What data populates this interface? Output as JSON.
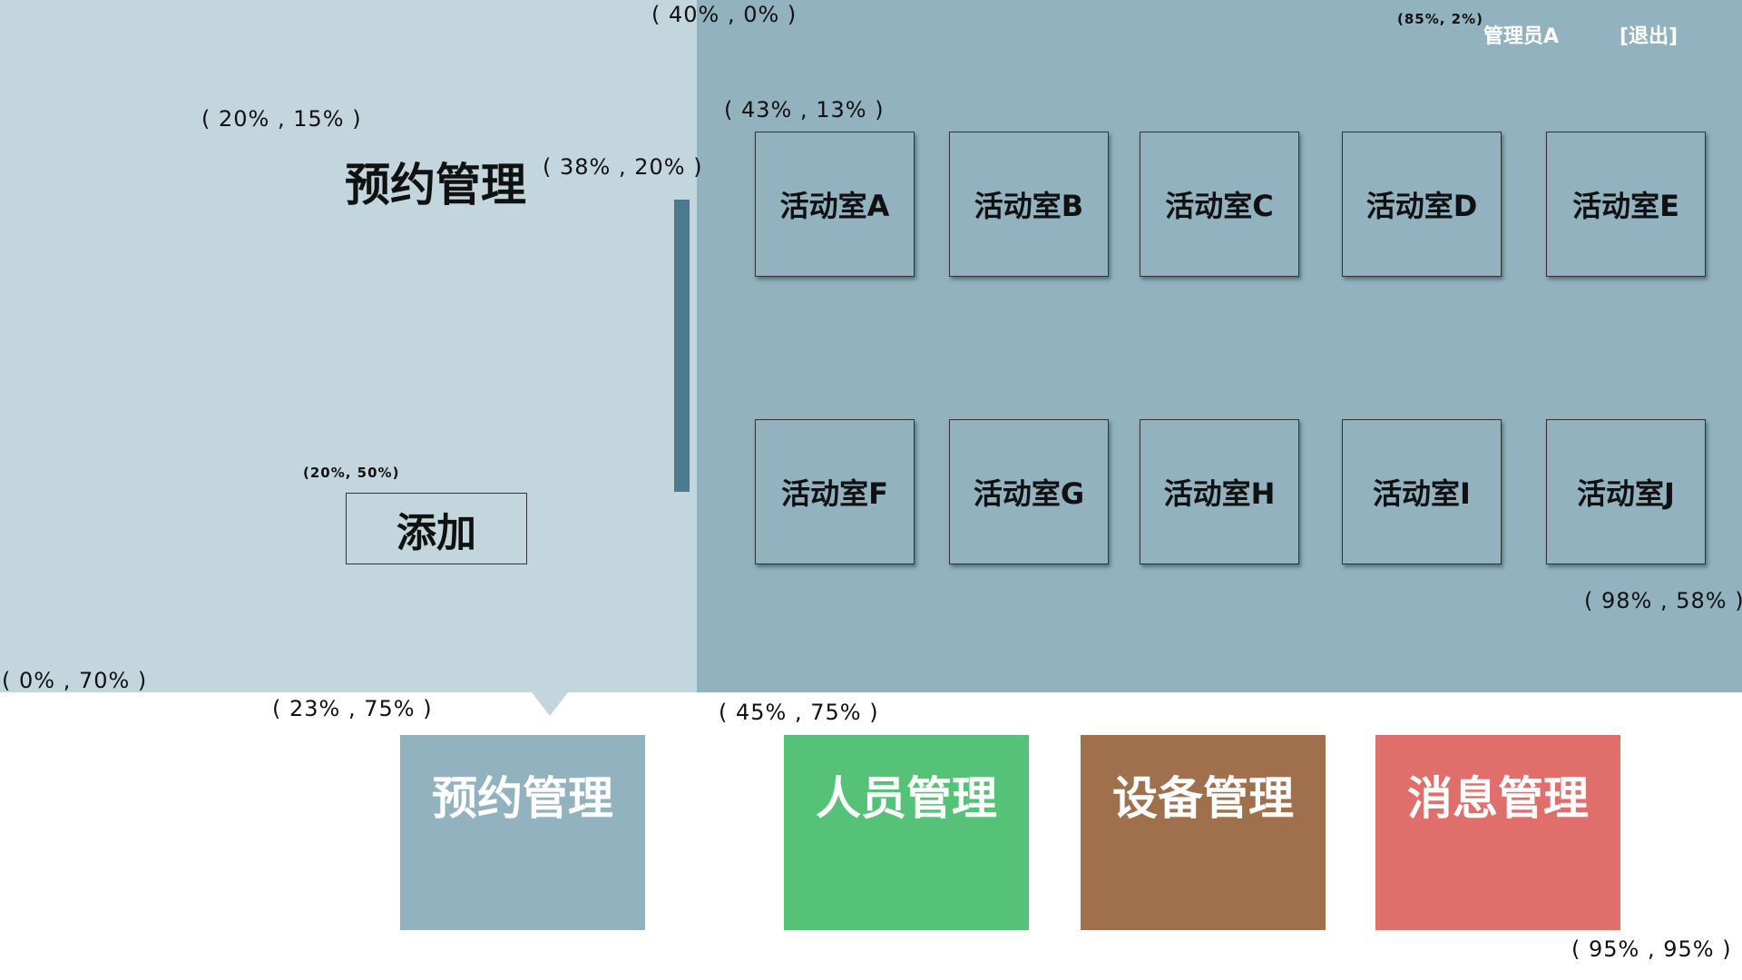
{
  "header": {
    "user_name": "管理员A",
    "logout_label": "[退出]"
  },
  "page_title": "预约管理",
  "add_label": "添加",
  "rooms": [
    {
      "label": "活动室A"
    },
    {
      "label": "活动室B"
    },
    {
      "label": "活动室C"
    },
    {
      "label": "活动室D"
    },
    {
      "label": "活动室E"
    },
    {
      "label": "活动室F"
    },
    {
      "label": "活动室G"
    },
    {
      "label": "活动室H"
    },
    {
      "label": "活动室I"
    },
    {
      "label": "活动室J"
    }
  ],
  "nav": [
    {
      "label": "预约管理",
      "color": "#92b2bf",
      "active": true
    },
    {
      "label": "人员管理",
      "color": "#56c277",
      "active": false
    },
    {
      "label": "设备管理",
      "color": "#a0704c",
      "active": false
    },
    {
      "label": "消息管理",
      "color": "#e06f6c",
      "active": false
    }
  ],
  "annotations": [
    "( 40% , 0% )",
    "(85%, 2%)",
    "( 20% , 15% )",
    "( 38% , 20% )",
    "( 43% , 13% )",
    "(20%, 50%)",
    "( 98% , 58% )",
    "( 0% , 70% )",
    "( 23% , 75% )",
    "( 45% , 75% )",
    "( 95% , 95% )"
  ],
  "colors": {
    "left_panel": "#c3d6de",
    "right_panel": "#92b2bf",
    "scrollbar": "#4b7a8d"
  }
}
